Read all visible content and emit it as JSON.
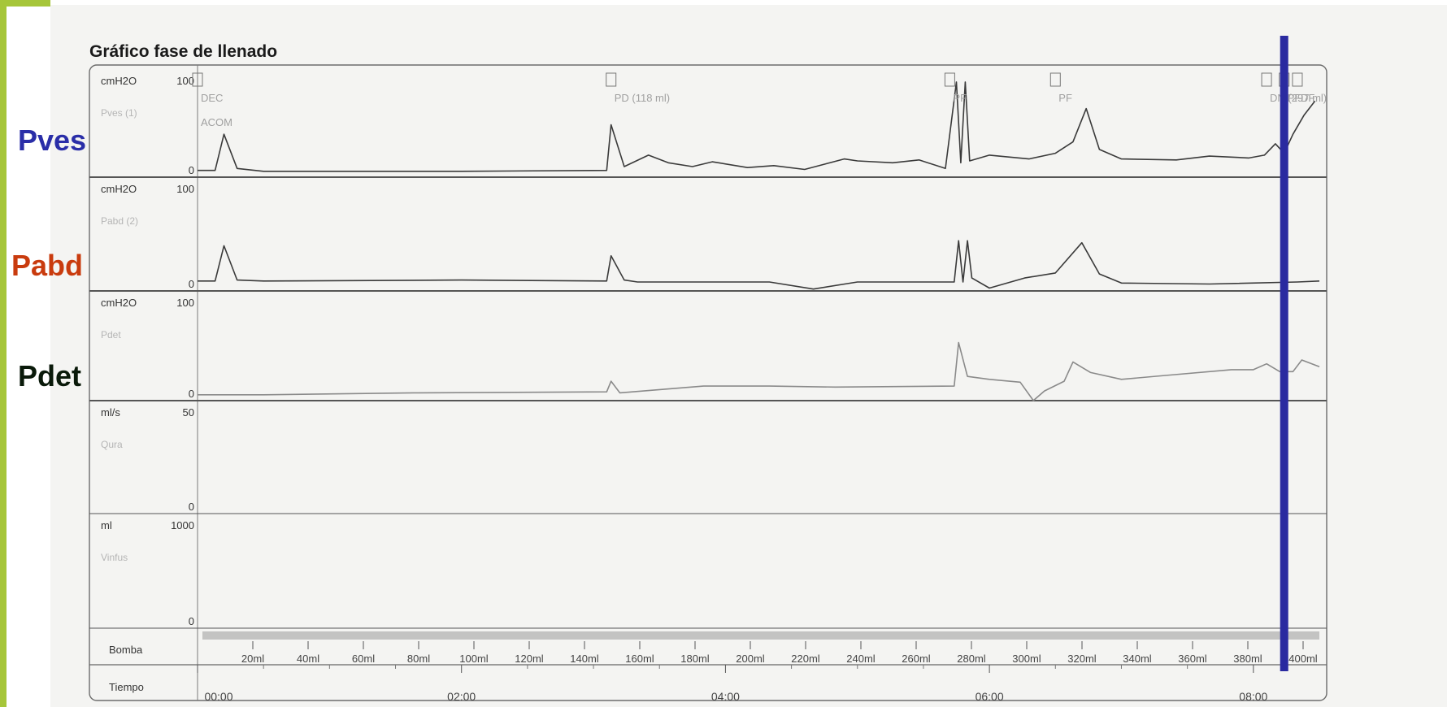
{
  "title": "Gráfico fase de llenado",
  "colors": {
    "pves": "#2a2ea8",
    "pabd": "#c93b0e",
    "pdet": "#0a1a0a",
    "marker": "#2a2aa0",
    "accent_green": "#a6c63a"
  },
  "side_labels": {
    "pves": "Pves",
    "pabd": "Pabd",
    "pdet": "Pdet"
  },
  "chart_data": {
    "type": "line",
    "title": "Gráfico fase de llenado",
    "x_time_ticks": [
      "00:00",
      "02:00",
      "04:00",
      "06:00",
      "08:00"
    ],
    "xlim_minutes": [
      0,
      510
    ],
    "marker_time_min": 494,
    "panels": [
      {
        "id": "pves",
        "unit": "cmH2O",
        "max_label": "100",
        "min_label": "0",
        "channel": "Pves (1)",
        "ylim": [
          0,
          100
        ],
        "series": [
          [
            0,
            2
          ],
          [
            8,
            2
          ],
          [
            12,
            40
          ],
          [
            18,
            4
          ],
          [
            30,
            1
          ],
          [
            120,
            1
          ],
          [
            186,
            2
          ],
          [
            188,
            50
          ],
          [
            194,
            6
          ],
          [
            205,
            18
          ],
          [
            214,
            10
          ],
          [
            225,
            6
          ],
          [
            234,
            11
          ],
          [
            250,
            5
          ],
          [
            262,
            7
          ],
          [
            276,
            3
          ],
          [
            294,
            14
          ],
          [
            300,
            12
          ],
          [
            316,
            10
          ],
          [
            328,
            13
          ],
          [
            340,
            4
          ],
          [
            345,
            95
          ],
          [
            347,
            10
          ],
          [
            349,
            95
          ],
          [
            351,
            12
          ],
          [
            360,
            18
          ],
          [
            378,
            14
          ],
          [
            390,
            20
          ],
          [
            398,
            32
          ],
          [
            404,
            67
          ],
          [
            410,
            24
          ],
          [
            420,
            14
          ],
          [
            445,
            13
          ],
          [
            460,
            17
          ],
          [
            478,
            15
          ],
          [
            485,
            18
          ],
          [
            490,
            30
          ],
          [
            494,
            20
          ],
          [
            498,
            40
          ],
          [
            503,
            60
          ],
          [
            508,
            75
          ]
        ]
      },
      {
        "id": "pabd",
        "unit": "cmH2O",
        "max_label": "100",
        "min_label": "0",
        "channel": "Pabd (2)",
        "ylim": [
          0,
          100
        ],
        "series": [
          [
            0,
            5
          ],
          [
            8,
            5
          ],
          [
            12,
            40
          ],
          [
            18,
            6
          ],
          [
            30,
            5
          ],
          [
            120,
            6
          ],
          [
            186,
            5
          ],
          [
            188,
            30
          ],
          [
            194,
            6
          ],
          [
            200,
            4
          ],
          [
            206,
            4
          ],
          [
            260,
            4
          ],
          [
            280,
            -3
          ],
          [
            300,
            4
          ],
          [
            344,
            4
          ],
          [
            346,
            45
          ],
          [
            348,
            4
          ],
          [
            350,
            45
          ],
          [
            352,
            8
          ],
          [
            360,
            -2
          ],
          [
            376,
            8
          ],
          [
            390,
            13
          ],
          [
            402,
            43
          ],
          [
            410,
            12
          ],
          [
            420,
            3
          ],
          [
            460,
            2
          ],
          [
            500,
            4
          ],
          [
            510,
            5
          ]
        ]
      },
      {
        "id": "pdet",
        "unit": "cmH2O",
        "max_label": "100",
        "min_label": "0",
        "channel": "Pdet",
        "ylim": [
          0,
          100
        ],
        "series": [
          [
            0,
            1
          ],
          [
            30,
            1
          ],
          [
            100,
            3
          ],
          [
            186,
            4
          ],
          [
            188,
            15
          ],
          [
            192,
            3
          ],
          [
            230,
            10
          ],
          [
            260,
            10
          ],
          [
            290,
            9
          ],
          [
            344,
            10
          ],
          [
            346,
            55
          ],
          [
            350,
            20
          ],
          [
            360,
            17
          ],
          [
            374,
            14
          ],
          [
            380,
            -5
          ],
          [
            385,
            5
          ],
          [
            394,
            15
          ],
          [
            398,
            35
          ],
          [
            406,
            24
          ],
          [
            420,
            17
          ],
          [
            440,
            21
          ],
          [
            470,
            27
          ],
          [
            480,
            27
          ],
          [
            486,
            33
          ],
          [
            492,
            25
          ],
          [
            498,
            25
          ],
          [
            502,
            37
          ],
          [
            510,
            30
          ]
        ]
      },
      {
        "id": "qura",
        "unit": "ml/s",
        "max_label": "50",
        "min_label": "0",
        "channel": "Qura",
        "ylim": [
          0,
          50
        ],
        "series": []
      },
      {
        "id": "vinf",
        "unit": "ml",
        "max_label": "1000",
        "min_label": "0",
        "channel": "Vinfus",
        "ylim": [
          0,
          1000
        ],
        "series": []
      }
    ],
    "event_markers": [
      {
        "time_min": 0,
        "label": "DEC"
      },
      {
        "time_min": 0,
        "label": "ACOM"
      },
      {
        "time_min": 188,
        "label": "PD (118 ml)"
      },
      {
        "time_min": 342,
        "label": "PF"
      },
      {
        "time_min": 390,
        "label": "PF"
      },
      {
        "time_min": 486,
        "label": "DN (297 ml)"
      },
      {
        "time_min": 494,
        "label": "PF"
      },
      {
        "time_min": 500,
        "label": "DF"
      }
    ],
    "bomba_label": "Bomba",
    "tiempo_label": "Tiempo",
    "bomba_ticks": [
      "20ml",
      "40ml",
      "60ml",
      "80ml",
      "100ml",
      "120ml",
      "140ml",
      "160ml",
      "180ml",
      "200ml",
      "220ml",
      "240ml",
      "260ml",
      "280ml",
      "300ml",
      "320ml",
      "340ml",
      "360ml",
      "380ml",
      "400ml"
    ]
  }
}
